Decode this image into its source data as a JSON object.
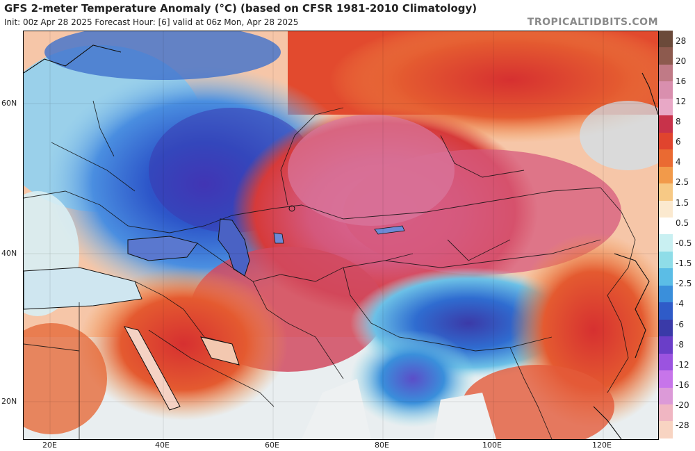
{
  "header": {
    "title": "GFS 2-meter Temperature Anomaly (°C) (based on CFSR 1981-2010 Climatology)",
    "subtitle": "Init: 00z Apr 28 2025   Forecast Hour: [6]   valid at 06z Mon, Apr 28 2025",
    "brand": "TROPICALTIDBITS.COM"
  },
  "map": {
    "lat_labels": [
      "60N",
      "40N",
      "20N"
    ],
    "lon_labels": [
      "20E",
      "40E",
      "60E",
      "80E",
      "100E",
      "120E"
    ]
  },
  "colorbar": {
    "labels": [
      "28",
      "20",
      "16",
      "12",
      "8",
      "6",
      "4",
      "2.5",
      "1.5",
      "0.5",
      "-0.5",
      "-1.5",
      "-2.5",
      "-4",
      "-6",
      "-8",
      "-12",
      "-16",
      "-20",
      "-28"
    ],
    "colors": [
      "#6b4a3a",
      "#8d5a4e",
      "#c07a86",
      "#d98fae",
      "#e8a8c6",
      "#c8324a",
      "#e0442e",
      "#ea6a32",
      "#f29a4a",
      "#f7c985",
      "#fbe9cf",
      "#ffffff",
      "#c9f0f2",
      "#8fdde8",
      "#5bbde6",
      "#3a8fdb",
      "#2f5bc8",
      "#3a3aa8",
      "#6a3ec8",
      "#9b53e0",
      "#c775ea",
      "#dc9ad8",
      "#f0b6c2",
      "#f8d4c2"
    ]
  }
}
